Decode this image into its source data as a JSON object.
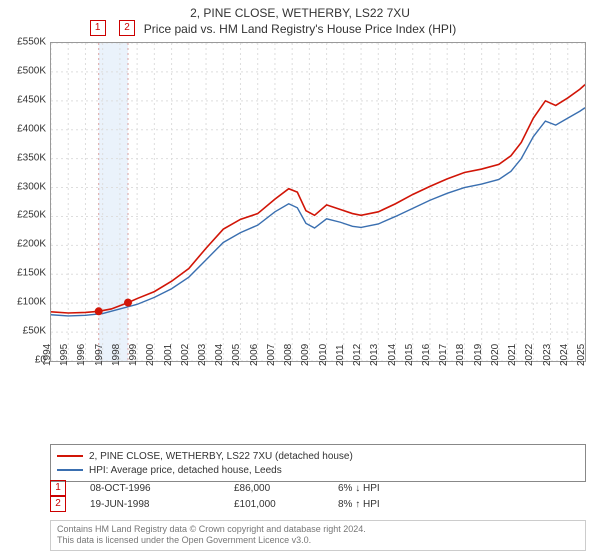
{
  "title": "2, PINE CLOSE, WETHERBY, LS22 7XU",
  "subtitle": "Price paid vs. HM Land Registry's House Price Index (HPI)",
  "chart": {
    "type": "line",
    "background_color": "#ffffff",
    "border_color": "#999999",
    "grid_color": "#dddddd",
    "grid_dash": "2,3",
    "x_axis": {
      "min": 1994,
      "max": 2025,
      "tick_step": 1,
      "label_fontsize": 10,
      "rotation": -90
    },
    "y_axis": {
      "min": 0,
      "max": 550000,
      "tick_step": 50000,
      "label_fontsize": 10,
      "prefix": "£",
      "format_thousands_K": true
    },
    "yticks": [
      "£0",
      "£50K",
      "£100K",
      "£150K",
      "£200K",
      "£250K",
      "£300K",
      "£350K",
      "£400K",
      "£450K",
      "£500K",
      "£550K"
    ],
    "xticks": [
      "1994",
      "1995",
      "1996",
      "1997",
      "1998",
      "1999",
      "2000",
      "2001",
      "2002",
      "2003",
      "2004",
      "2005",
      "2006",
      "2007",
      "2008",
      "2009",
      "2010",
      "2011",
      "2012",
      "2013",
      "2014",
      "2015",
      "2016",
      "2017",
      "2018",
      "2019",
      "2020",
      "2021",
      "2022",
      "2023",
      "2024",
      "2025"
    ],
    "series": [
      {
        "name": "subject",
        "label": "2, PINE CLOSE, WETHERBY, LS22 7XU (detached house)",
        "color": "#d11507",
        "line_width": 1.6,
        "data": [
          [
            1994.0,
            85000
          ],
          [
            1995.0,
            83000
          ],
          [
            1996.0,
            84000
          ],
          [
            1996.77,
            86000
          ],
          [
            1997.5,
            90000
          ],
          [
            1998.47,
            101000
          ],
          [
            1999.0,
            108000
          ],
          [
            2000.0,
            120000
          ],
          [
            2001.0,
            138000
          ],
          [
            2002.0,
            160000
          ],
          [
            2003.0,
            195000
          ],
          [
            2004.0,
            228000
          ],
          [
            2005.0,
            245000
          ],
          [
            2006.0,
            255000
          ],
          [
            2007.0,
            280000
          ],
          [
            2007.8,
            298000
          ],
          [
            2008.3,
            292000
          ],
          [
            2008.8,
            260000
          ],
          [
            2009.3,
            252000
          ],
          [
            2010.0,
            270000
          ],
          [
            2010.8,
            262000
          ],
          [
            2011.5,
            255000
          ],
          [
            2012.0,
            252000
          ],
          [
            2013.0,
            258000
          ],
          [
            2014.0,
            272000
          ],
          [
            2015.0,
            288000
          ],
          [
            2016.0,
            302000
          ],
          [
            2017.0,
            315000
          ],
          [
            2018.0,
            326000
          ],
          [
            2019.0,
            332000
          ],
          [
            2020.0,
            340000
          ],
          [
            2020.7,
            355000
          ],
          [
            2021.3,
            378000
          ],
          [
            2022.0,
            420000
          ],
          [
            2022.7,
            450000
          ],
          [
            2023.3,
            442000
          ],
          [
            2024.0,
            455000
          ],
          [
            2024.7,
            470000
          ],
          [
            2025.0,
            478000
          ]
        ]
      },
      {
        "name": "hpi",
        "label": "HPI: Average price, detached house, Leeds",
        "color": "#3a6fb0",
        "line_width": 1.4,
        "data": [
          [
            1994.0,
            80000
          ],
          [
            1995.0,
            78000
          ],
          [
            1996.0,
            79000
          ],
          [
            1997.0,
            82000
          ],
          [
            1998.0,
            90000
          ],
          [
            1999.0,
            98000
          ],
          [
            2000.0,
            110000
          ],
          [
            2001.0,
            125000
          ],
          [
            2002.0,
            145000
          ],
          [
            2003.0,
            175000
          ],
          [
            2004.0,
            205000
          ],
          [
            2005.0,
            222000
          ],
          [
            2006.0,
            235000
          ],
          [
            2007.0,
            258000
          ],
          [
            2007.8,
            272000
          ],
          [
            2008.3,
            265000
          ],
          [
            2008.8,
            238000
          ],
          [
            2009.3,
            230000
          ],
          [
            2010.0,
            246000
          ],
          [
            2010.8,
            240000
          ],
          [
            2011.5,
            233000
          ],
          [
            2012.0,
            231000
          ],
          [
            2013.0,
            237000
          ],
          [
            2014.0,
            250000
          ],
          [
            2015.0,
            264000
          ],
          [
            2016.0,
            278000
          ],
          [
            2017.0,
            290000
          ],
          [
            2018.0,
            300000
          ],
          [
            2019.0,
            306000
          ],
          [
            2020.0,
            314000
          ],
          [
            2020.7,
            328000
          ],
          [
            2021.3,
            350000
          ],
          [
            2022.0,
            388000
          ],
          [
            2022.7,
            415000
          ],
          [
            2023.3,
            408000
          ],
          [
            2024.0,
            420000
          ],
          [
            2024.7,
            432000
          ],
          [
            2025.0,
            438000
          ]
        ]
      }
    ],
    "sale_markers": {
      "color": "#d11507",
      "radius": 4,
      "guide_color": "#d9a0a0",
      "guide_dash": "2,3",
      "highlight_band_fill": "#eaf2fb",
      "points": [
        {
          "idx": "1",
          "x": 1996.77,
          "y": 86000
        },
        {
          "idx": "2",
          "x": 1998.47,
          "y": 101000
        }
      ]
    },
    "top_badges": [
      {
        "idx": "1",
        "x": 1996.77
      },
      {
        "idx": "2",
        "x": 1998.47
      }
    ]
  },
  "legend": {
    "border_color": "#888888",
    "fontsize": 10,
    "items": [
      {
        "series": "subject",
        "label": "2, PINE CLOSE, WETHERBY, LS22 7XU (detached house)",
        "color": "#d11507"
      },
      {
        "series": "hpi",
        "label": "HPI: Average price, detached house, Leeds",
        "color": "#3a6fb0"
      }
    ]
  },
  "sales": [
    {
      "idx": "1",
      "date": "08-OCT-1996",
      "price": "£86,000",
      "diff": "6% ↓ HPI"
    },
    {
      "idx": "2",
      "date": "19-JUN-1998",
      "price": "£101,000",
      "diff": "8% ↑ HPI"
    }
  ],
  "footer": {
    "line1": "Contains HM Land Registry data © Crown copyright and database right 2024.",
    "line2": "This data is licensed under the Open Government Licence v3.0."
  }
}
